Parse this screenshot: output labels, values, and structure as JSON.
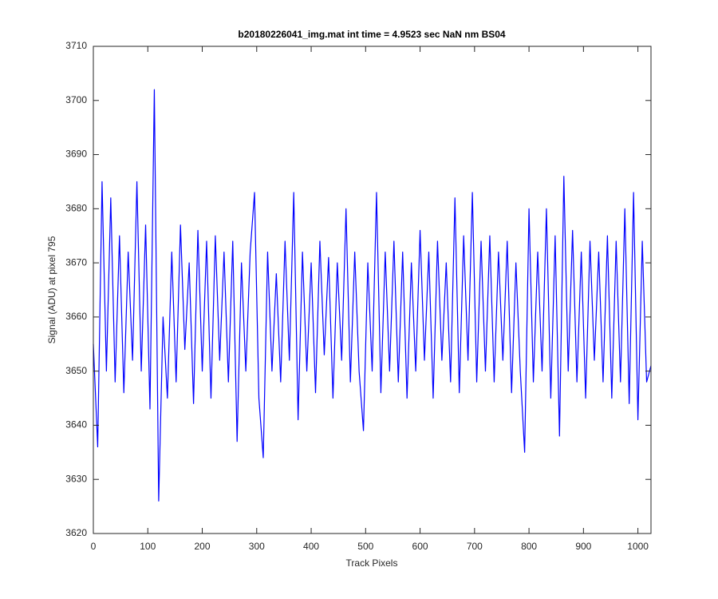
{
  "chart_data": {
    "type": "line",
    "title": "b20180226041_img.mat int time = 4.9523 sec  NaN nm BS04",
    "x_label": "Track Pixels",
    "y_label": "Signal (ADU) at pixel 795",
    "x": [
      0,
      8,
      16,
      24,
      32,
      40,
      48,
      56,
      64,
      72,
      80,
      88,
      96,
      104,
      112,
      120,
      128,
      136,
      144,
      152,
      160,
      168,
      176,
      184,
      192,
      200,
      208,
      216,
      224,
      232,
      240,
      248,
      256,
      264,
      272,
      280,
      288,
      296,
      304,
      312,
      320,
      328,
      336,
      344,
      352,
      360,
      368,
      376,
      384,
      392,
      400,
      408,
      416,
      424,
      432,
      440,
      448,
      456,
      464,
      472,
      480,
      488,
      496,
      504,
      512,
      520,
      528,
      536,
      544,
      552,
      560,
      568,
      576,
      584,
      592,
      600,
      608,
      616,
      624,
      632,
      640,
      648,
      656,
      664,
      672,
      680,
      688,
      696,
      704,
      712,
      720,
      728,
      736,
      744,
      752,
      760,
      768,
      776,
      784,
      792,
      800,
      808,
      816,
      824,
      832,
      840,
      848,
      856,
      864,
      872,
      880,
      888,
      896,
      904,
      912,
      920,
      928,
      936,
      944,
      952,
      960,
      968,
      976,
      984,
      992,
      1000,
      1008,
      1016,
      1024
    ],
    "series": [
      {
        "color": "#0000ff",
        "values": [
          3655,
          3636,
          3685,
          3650,
          3682,
          3648,
          3675,
          3646,
          3672,
          3652,
          3685,
          3650,
          3677,
          3643,
          3702,
          3626,
          3660,
          3645,
          3672,
          3648,
          3677,
          3654,
          3670,
          3644,
          3676,
          3650,
          3674,
          3645,
          3675,
          3652,
          3672,
          3648,
          3674,
          3637,
          3670,
          3650,
          3672,
          3683,
          3645,
          3634,
          3672,
          3650,
          3668,
          3648,
          3674,
          3652,
          3683,
          3641,
          3672,
          3650,
          3670,
          3646,
          3674,
          3653,
          3671,
          3645,
          3670,
          3652,
          3680,
          3648,
          3672,
          3650,
          3639,
          3670,
          3650,
          3683,
          3646,
          3672,
          3650,
          3674,
          3648,
          3672,
          3645,
          3670,
          3650,
          3676,
          3652,
          3672,
          3645,
          3674,
          3652,
          3670,
          3648,
          3682,
          3646,
          3675,
          3652,
          3683,
          3648,
          3674,
          3650,
          3675,
          3648,
          3672,
          3652,
          3674,
          3646,
          3670,
          3650,
          3635,
          3680,
          3648,
          3672,
          3650,
          3680,
          3645,
          3675,
          3638,
          3686,
          3650,
          3676,
          3648,
          3672,
          3645,
          3674,
          3652,
          3672,
          3648,
          3675,
          3645,
          3674,
          3648,
          3680,
          3644,
          3683,
          3641,
          3674,
          3648,
          3651
        ]
      }
    ],
    "xlim": [
      0,
      1024
    ],
    "ylim": [
      3620,
      3710
    ],
    "xticks": [
      0,
      100,
      200,
      300,
      400,
      500,
      600,
      700,
      800,
      900,
      1000
    ],
    "yticks": [
      3620,
      3630,
      3640,
      3650,
      3660,
      3670,
      3680,
      3690,
      3700,
      3710
    ]
  }
}
